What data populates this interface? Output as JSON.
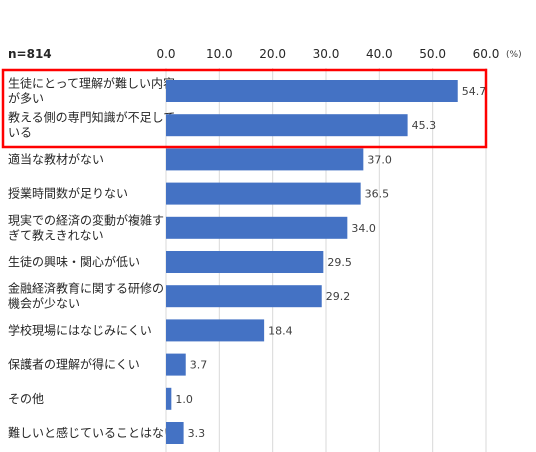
{
  "chart_data": {
    "type": "bar",
    "orientation": "horizontal",
    "sample_label": "n=814",
    "unit": "(%)",
    "xlim": [
      0,
      60
    ],
    "ticks": [
      "0.0",
      "10.0",
      "20.0",
      "30.0",
      "40.0",
      "50.0",
      "60.0"
    ],
    "grid": true,
    "categories": [
      [
        "生徒にとって理解が難しい内容",
        "が多い"
      ],
      [
        "教える側の専門知識が不足して",
        "いる"
      ],
      [
        "適当な教材がない"
      ],
      [
        "授業時間数が足りない"
      ],
      [
        "現実での経済の変動が複雑す",
        "ぎて教えきれない"
      ],
      [
        "生徒の興味・関心が低い"
      ],
      [
        "金融経済教育に関する研修の",
        "機会が少ない"
      ],
      [
        "学校現場にはなじみにくい"
      ],
      [
        "保護者の理解が得にくい"
      ],
      [
        "その他"
      ],
      [
        "難しいと感じていることはない"
      ]
    ],
    "values": [
      54.7,
      45.3,
      37.0,
      36.5,
      34.0,
      29.5,
      29.2,
      18.4,
      3.7,
      1.0,
      3.3
    ],
    "value_labels": [
      "54.7",
      "45.3",
      "37.0",
      "36.5",
      "34.0",
      "29.5",
      "29.2",
      "18.4",
      "3.7",
      "1.0",
      "3.3"
    ],
    "highlighted": [
      0,
      1
    ],
    "colors": {
      "bar": "#4472C4",
      "highlight": "#FF0000",
      "grid": "#D9D9D9"
    }
  }
}
